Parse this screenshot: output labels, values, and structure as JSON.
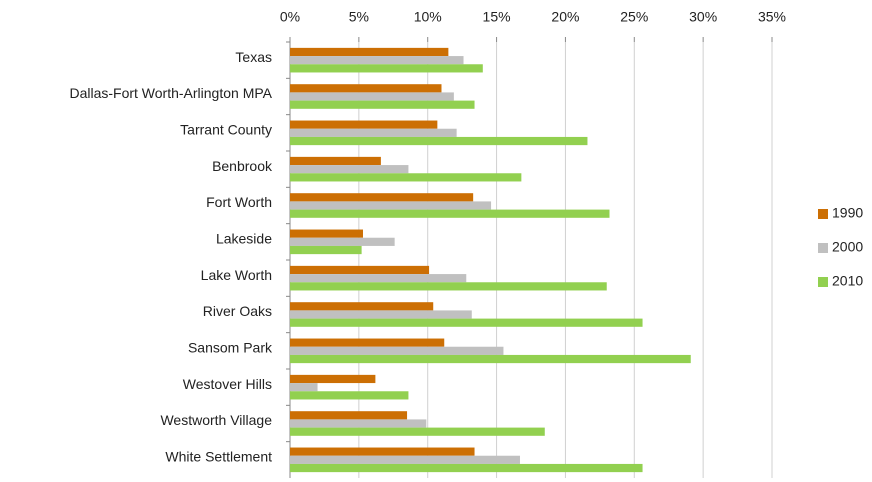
{
  "chart_data": {
    "type": "bar",
    "orientation": "horizontal",
    "categories": [
      "Texas",
      "Dallas-Fort Worth-Arlington MPA",
      "Tarrant County",
      "Benbrook",
      "Fort Worth",
      "Lakeside",
      "Lake Worth",
      "River Oaks",
      "Sansom Park",
      "Westover Hills",
      "Westworth Village",
      "White Settlement"
    ],
    "series": [
      {
        "name": "1990",
        "color": "#cc6f04",
        "values": [
          11.5,
          11.0,
          10.7,
          6.6,
          13.3,
          5.3,
          10.1,
          10.4,
          11.2,
          6.2,
          8.5,
          13.4
        ]
      },
      {
        "name": "2000",
        "color": "#c0c0c0",
        "values": [
          12.6,
          11.9,
          12.1,
          8.6,
          14.6,
          7.6,
          12.8,
          13.2,
          15.5,
          2.0,
          9.9,
          16.7
        ]
      },
      {
        "name": "2010",
        "color": "#92d050",
        "values": [
          14.0,
          13.4,
          21.6,
          16.8,
          23.2,
          5.2,
          23.0,
          25.6,
          29.1,
          8.6,
          18.5,
          25.6
        ]
      }
    ],
    "xlim": [
      0,
      35
    ],
    "xticks": [
      {
        "value": 0,
        "label": "0%"
      },
      {
        "value": 5,
        "label": "5%"
      },
      {
        "value": 10,
        "label": "10%"
      },
      {
        "value": 15,
        "label": "15%"
      },
      {
        "value": 20,
        "label": "20%"
      },
      {
        "value": 25,
        "label": "25%"
      },
      {
        "value": 30,
        "label": "30%"
      },
      {
        "value": 35,
        "label": "35%"
      }
    ],
    "grid": true,
    "legend": "right"
  }
}
